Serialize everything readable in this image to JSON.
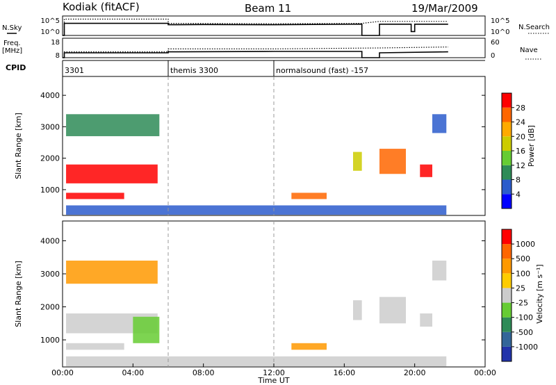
{
  "header": {
    "station": "Kodiak (fitACF)",
    "beam": "Beam 11",
    "date": "19/Mar/2009"
  },
  "chart_data": [
    {
      "type": "line",
      "name": "noise-panel",
      "left_label": [
        "N.Sky"
      ],
      "right_label": [
        "N.Search"
      ],
      "left_ticks": [
        "10^5",
        "10^0"
      ],
      "right_ticks": [
        "10^5",
        "10^0"
      ],
      "series": [
        {
          "style": "solid",
          "x": [
            0.0,
            0.1,
            0.1,
            6.0,
            6.0,
            8.0,
            12.0,
            17.0,
            17.0,
            18.0,
            18.0,
            19.8,
            19.8,
            20.0,
            20.0,
            21.9
          ],
          "y": [
            0.0,
            0.0,
            0.62,
            0.62,
            0.55,
            0.56,
            0.55,
            0.58,
            0.0,
            0.0,
            0.58,
            0.58,
            0.2,
            0.2,
            0.58,
            0.58
          ]
        },
        {
          "style": "dotted",
          "x": [
            0.0,
            0.1,
            0.1,
            6.0,
            6.0,
            12.0,
            17.0,
            18.0,
            21.9
          ],
          "y": [
            0.0,
            0.0,
            0.84,
            0.84,
            0.62,
            0.6,
            0.62,
            0.72,
            0.72
          ]
        }
      ]
    },
    {
      "type": "line",
      "name": "frequency-panel",
      "left_label": [
        "Freq.",
        "[MHz]"
      ],
      "right_label": [
        "Nave"
      ],
      "left_ticks": [
        "18",
        "8"
      ],
      "right_ticks": [
        "60",
        "0"
      ],
      "series": [
        {
          "style": "solid",
          "x": [
            0.0,
            0.1,
            0.1,
            6.0,
            6.0,
            12.0,
            17.0,
            17.0,
            18.0,
            18.0,
            21.9
          ],
          "y": [
            0.0,
            0.0,
            0.25,
            0.25,
            0.3,
            0.32,
            0.32,
            0.0,
            0.0,
            0.25,
            0.3
          ]
        },
        {
          "style": "dotted",
          "x": [
            0.0,
            0.1,
            0.1,
            6.0,
            6.0,
            12.0,
            18.0,
            21.9
          ],
          "y": [
            0.0,
            0.0,
            0.3,
            0.3,
            0.45,
            0.45,
            0.5,
            0.55
          ]
        }
      ]
    },
    {
      "type": "table",
      "name": "cpid-bar",
      "label": "CPID",
      "entries": [
        {
          "start": 0.0,
          "text": "3301"
        },
        {
          "start": 6.0,
          "text": "themis 3300"
        },
        {
          "start": 12.0,
          "text": "normalsound (fast) -157"
        }
      ]
    },
    {
      "type": "heatmap",
      "name": "power-panel",
      "ylabel": "Slant Range [km]",
      "ylim": [
        180,
        4600
      ],
      "yticks": [
        1000,
        2000,
        3000,
        4000
      ],
      "colorbar_label": "Power [dB]",
      "colorbar_ticks": [
        "4",
        "8",
        "12",
        "16",
        "20",
        "24",
        "28"
      ],
      "colorbar_colors": [
        "#0000ff",
        "#2b5ccc",
        "#2e8b57",
        "#66cc33",
        "#cccc00",
        "#ffaa00",
        "#ff6600",
        "#ff0000"
      ],
      "vertical_lines": [
        6,
        12
      ],
      "regions": [
        {
          "x": [
            0.2,
            5.5
          ],
          "y": [
            2700,
            3400
          ],
          "color": "#2e8b57"
        },
        {
          "x": [
            0.2,
            5.4
          ],
          "y": [
            1200,
            1800
          ],
          "color": "#ff0000"
        },
        {
          "x": [
            0.2,
            3.5
          ],
          "y": [
            700,
            900
          ],
          "color": "#ff0000"
        },
        {
          "x": [
            13.0,
            15.0
          ],
          "y": [
            700,
            900
          ],
          "color": "#ff6600"
        },
        {
          "x": [
            16.5,
            17.0
          ],
          "y": [
            1600,
            2200
          ],
          "color": "#cccc00"
        },
        {
          "x": [
            18.0,
            19.5
          ],
          "y": [
            1500,
            2300
          ],
          "color": "#ff6600"
        },
        {
          "x": [
            20.3,
            21.0
          ],
          "y": [
            1400,
            1800
          ],
          "color": "#ff0000"
        },
        {
          "x": [
            21.0,
            21.8
          ],
          "y": [
            2800,
            3400
          ],
          "color": "#2b5ccc"
        },
        {
          "x": [
            0.2,
            21.8
          ],
          "y": [
            200,
            500
          ],
          "color": "#2b5ccc"
        }
      ]
    },
    {
      "type": "heatmap",
      "name": "velocity-panel",
      "ylabel": "Slant Range [km]",
      "ylim": [
        180,
        4600
      ],
      "yticks": [
        1000,
        2000,
        3000,
        4000
      ],
      "xlabel": "Time UT",
      "xticks": [
        "00:00",
        "04:00",
        "08:00",
        "12:00",
        "16:00",
        "20:00",
        "00:00"
      ],
      "xlim": [
        0,
        24
      ],
      "colorbar_label": "Velocity [m s⁻¹]",
      "colorbar_ticks": [
        "1000",
        "500",
        "100",
        "25",
        "-25",
        "-100",
        "-500",
        "-1000"
      ],
      "colorbar_colors": [
        "#2233aa",
        "#336699",
        "#2e8b57",
        "#66cc33",
        "#cccccc",
        "#ffcc00",
        "#ff9900",
        "#ff6600",
        "#ff0000"
      ],
      "vertical_lines": [
        6,
        12
      ],
      "regions": [
        {
          "x": [
            0.2,
            5.4
          ],
          "y": [
            2700,
            3400
          ],
          "color": "#ff9900"
        },
        {
          "x": [
            0.2,
            5.4
          ],
          "y": [
            1200,
            1800
          ],
          "color": "#cccccc"
        },
        {
          "x": [
            4.0,
            5.5
          ],
          "y": [
            900,
            1700
          ],
          "color": "#66cc33"
        },
        {
          "x": [
            0.2,
            3.5
          ],
          "y": [
            700,
            900
          ],
          "color": "#cccccc"
        },
        {
          "x": [
            13.0,
            15.0
          ],
          "y": [
            700,
            900
          ],
          "color": "#ff9900"
        },
        {
          "x": [
            16.5,
            17.0
          ],
          "y": [
            1600,
            2200
          ],
          "color": "#cccccc"
        },
        {
          "x": [
            18.0,
            19.5
          ],
          "y": [
            1500,
            2300
          ],
          "color": "#cccccc"
        },
        {
          "x": [
            20.3,
            21.0
          ],
          "y": [
            1400,
            1800
          ],
          "color": "#cccccc"
        },
        {
          "x": [
            21.0,
            21.8
          ],
          "y": [
            2800,
            3400
          ],
          "color": "#cccccc"
        },
        {
          "x": [
            0.2,
            21.8
          ],
          "y": [
            200,
            500
          ],
          "color": "#cccccc"
        }
      ]
    }
  ]
}
